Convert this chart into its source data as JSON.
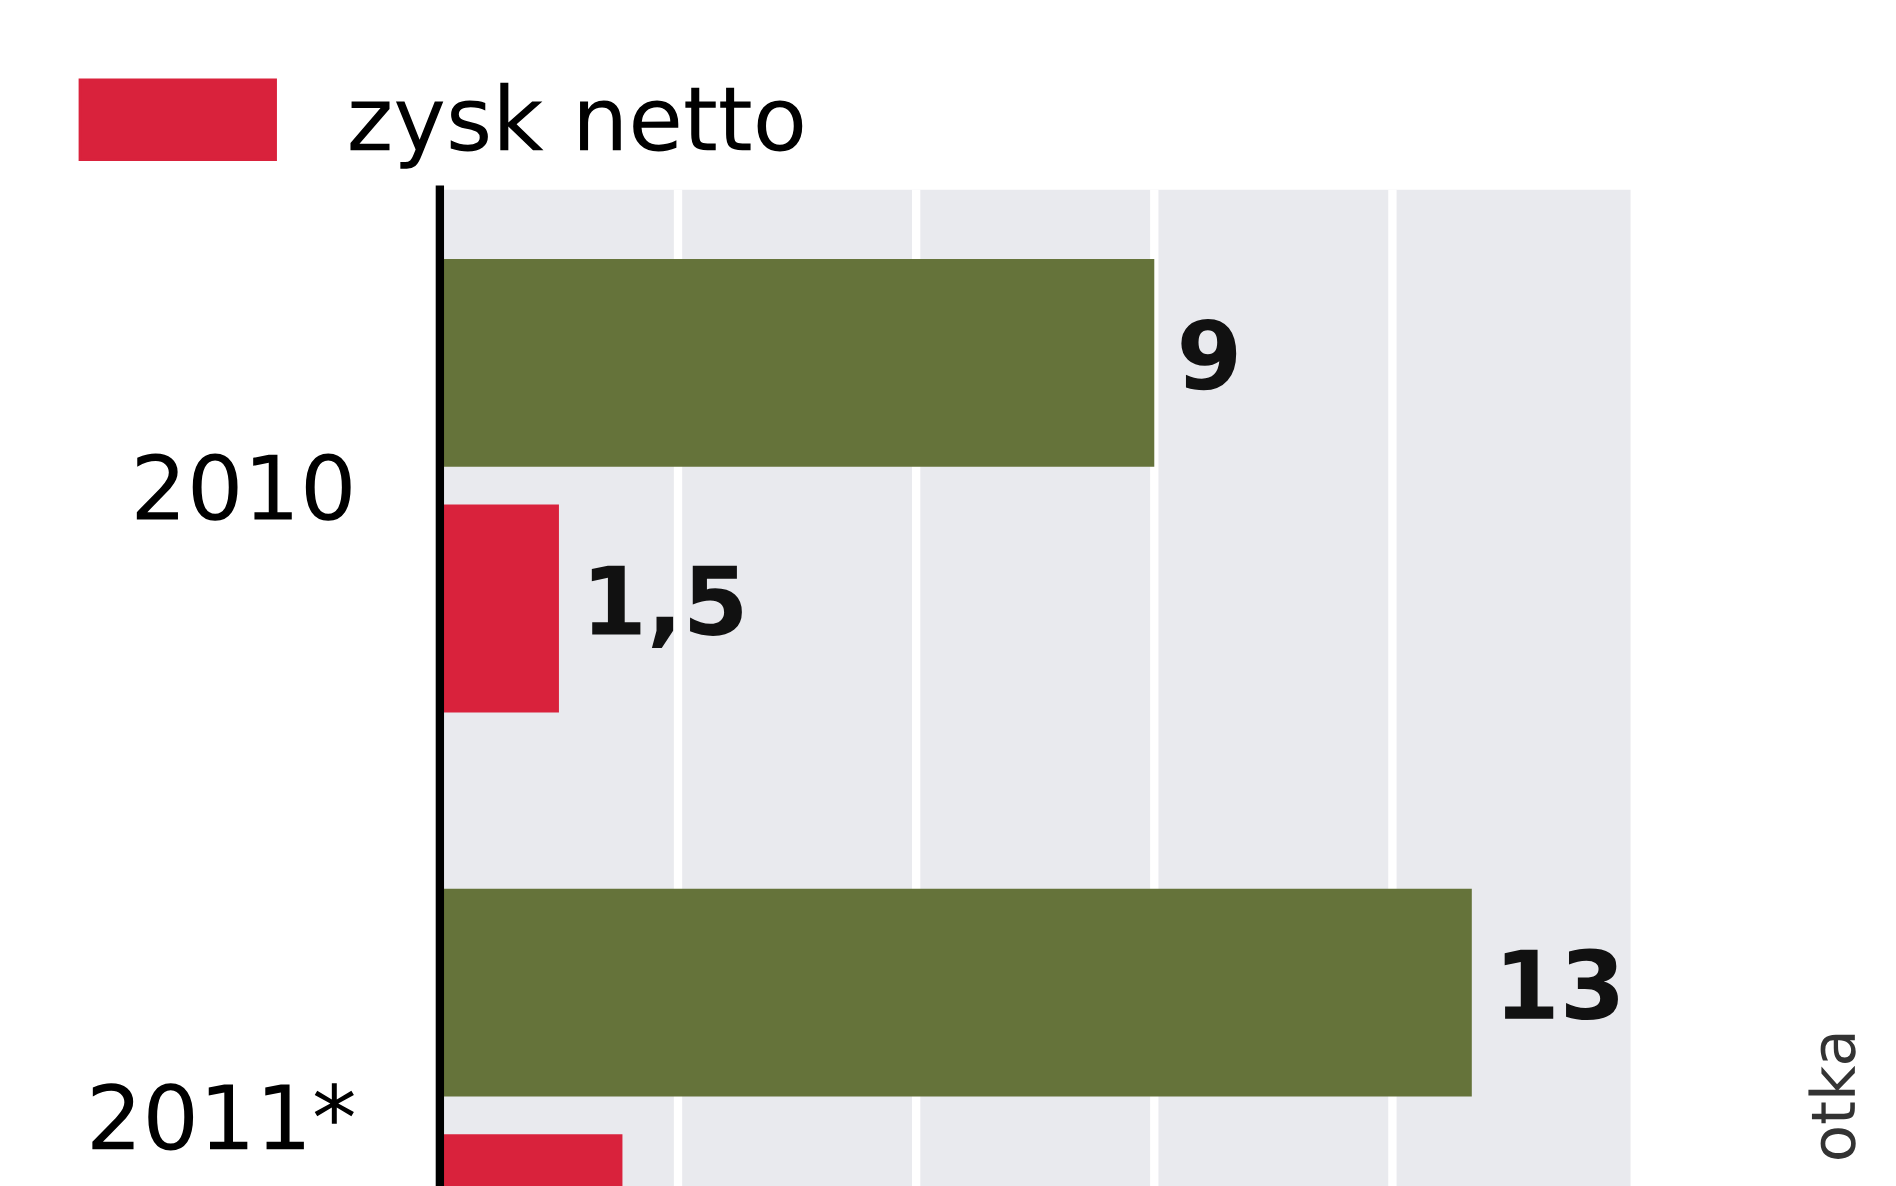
{
  "chart_data": {
    "type": "bar",
    "orientation": "horizontal",
    "categories": [
      "2010",
      "2011*"
    ],
    "series": [
      {
        "color": "#65733a",
        "values": [
          9,
          13
        ],
        "value_labels": [
          "9",
          "13"
        ]
      },
      {
        "name": "zysk netto",
        "color": "#d9223c",
        "values": [
          1.5,
          2.3
        ],
        "value_labels": [
          "1,5",
          null
        ]
      }
    ],
    "xlim": [
      0,
      15
    ],
    "xticks": [
      {
        "value": 3,
        "label": null
      },
      {
        "value": 6,
        "label": null
      },
      {
        "value": 9,
        "label": null
      },
      {
        "value": 12,
        "label": null
      }
    ],
    "grid": "x",
    "tick_labels": "y",
    "legend": "top left",
    "annotations": [
      "otka"
    ]
  }
}
